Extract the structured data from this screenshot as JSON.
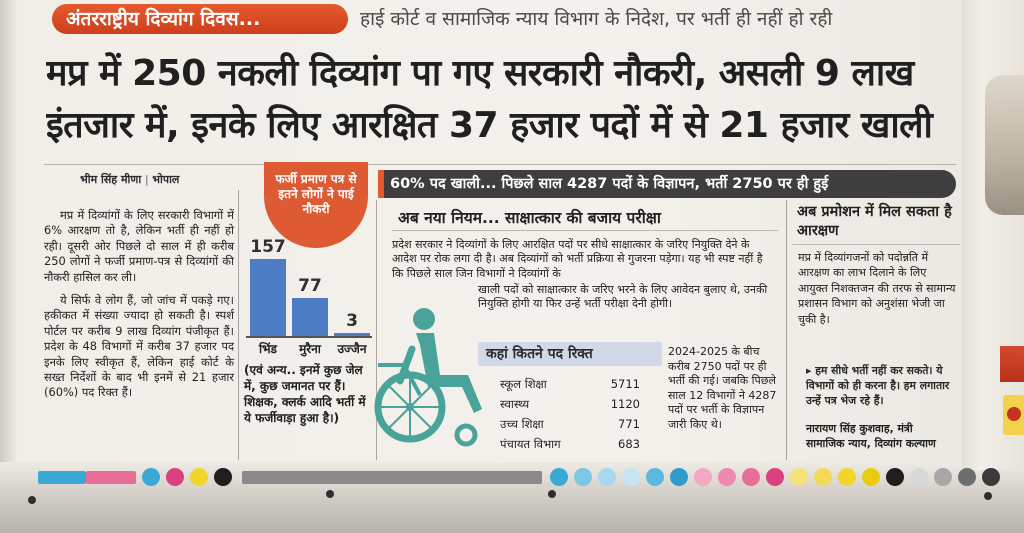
{
  "kicker": "अंतरराष्ट्रीय दिव्यांग दिवस...",
  "strapline": "हाई कोर्ट व सामाजिक न्याय विभाग के निदेश, पर भर्ती ही नहीं हो रही",
  "headline": {
    "line1": "मप्र में 250 नकली दिव्यांग पा गए सरकारी नौकरी, असली 9 लाख",
    "line2": "इंतजार में, इनके लिए आरक्षित 37 हजार पदों में से 21 हजार खाली"
  },
  "byline": {
    "name": "भीम सिंह मीणा",
    "place": "भोपाल"
  },
  "body": {
    "p1": "मप्र में दिव्यांगों के लिए सरकारी विभागों में 6% आरक्षण तो है, लेकिन भर्ती ही नहीं हो रही। दूसरी ओर पिछले दो साल में ही करीब 250 लोगों ने फर्जी प्रमाण-पत्र से दिव्यांगों की नौकरी हासिल कर ली।",
    "p2": "ये सिर्फ वे लोग हैं, जो जांच में पकड़े गए। हकीकत में संख्या ज्यादा हो सकती है। स्पर्श पोर्टल पर करीब 9 लाख दिव्यांग पंजीकृत हैं। प्रदेश के 48 विभागों में करीब 37 हजार पद इनके लिए स्वीकृत हैं, लेकिन हाई कोर्ट के सख्त निर्देशों के बाद भी इनमें से 21 हजार (60%) पद रिक्त हैं।"
  },
  "stamp": "फर्जी प्रमाण पत्र से इतने लोगों ने पाई नौकरी",
  "chart_data": {
    "type": "bar",
    "title": "फर्जी प्रमाण पत्र से इतने लोगों ने पाई नौकरी",
    "categories": [
      "भिंड",
      "मुरैना",
      "उज्जैन"
    ],
    "values": [
      157,
      77,
      3
    ],
    "xlabel": "",
    "ylabel": "",
    "ylim": [
      0,
      160
    ],
    "color": "#4f7dc5"
  },
  "chart_note": "(एवं अन्य.. इनमें कुछ जेल में, कुछ जमानत पर हैं। शिक्षक, क्लर्क आदि भर्ती में ये फर्जीवाड़ा हुआ है।)",
  "band": "60% पद खाली... पिछले साल 4287 पदों के विज्ञापन, भर्ती 2750 पर ही हुई",
  "section1": {
    "heading": "अब नया नियम... साक्षात्कार की बजाय परीक्षा",
    "text_a": "प्रदेश सरकार ने दिव्यांगों के लिए आरक्षित पदों पर सीधे साक्षात्कार के जरिए नियुक्ति देने के आदेश पर रोक लगा दी है। अब दिव्यांगों को भर्ती प्रक्रिया से गुजरना पड़ेगा। यह भी स्पष्ट नहीं है कि पिछले साल जिन विभागों ने दिव्यांगों के",
    "text_b": "खाली पदों को साक्षात्कार के जरिए भरने के लिए आवेदन बुलाए थे, उनकी नियुक्ति होगी या फिर उन्हें भर्ती परीक्षा देनी होगी।"
  },
  "vacancy_table": {
    "title": "कहां कितने पद रिक्त",
    "rows": [
      {
        "dept": "स्कूल शिक्षा",
        "count": "5711"
      },
      {
        "dept": "स्वास्थ्य",
        "count": "1120"
      },
      {
        "dept": "उच्च शिक्षा",
        "count": "771"
      },
      {
        "dept": "पंचायत विभाग",
        "count": "683"
      }
    ]
  },
  "note_2024": "2024-2025 के बीच करीब 2750 पदों पर ही भर्ती की गई। जबकि पिछले साल 12 विभागों ने 4287 पदों पर भर्ती के विज्ञापन जारी किए थे।",
  "section3": {
    "heading": "अब प्रमोशन में मिल सकता है आरक्षण",
    "text": "मप्र में दिव्यांगजनों को पदोन्नति में आरक्षण का लाभ दिलाने के लिए आयुक्त निशक्तजन की तरफ से सामान्य प्रशासन विभाग को अनुशंसा भेजी जा चुकी है।",
    "quote": "हम सीधे भर्ती नहीं कर सकते। ये विभागों को ही करना है। हम लगातार उन्हें पत्र भेज रहे हैं।",
    "attribution_name": "नारायण सिंह कुशवाह, मंत्री",
    "attribution_title": "सामाजिक न्याय, दिव्यांग कल्याण"
  },
  "colors": {
    "kicker_bg": "#e45a2c",
    "band_bg": "#3e3e3e",
    "bar": "#4f7dc5",
    "table_header": "#d1d8e8"
  }
}
